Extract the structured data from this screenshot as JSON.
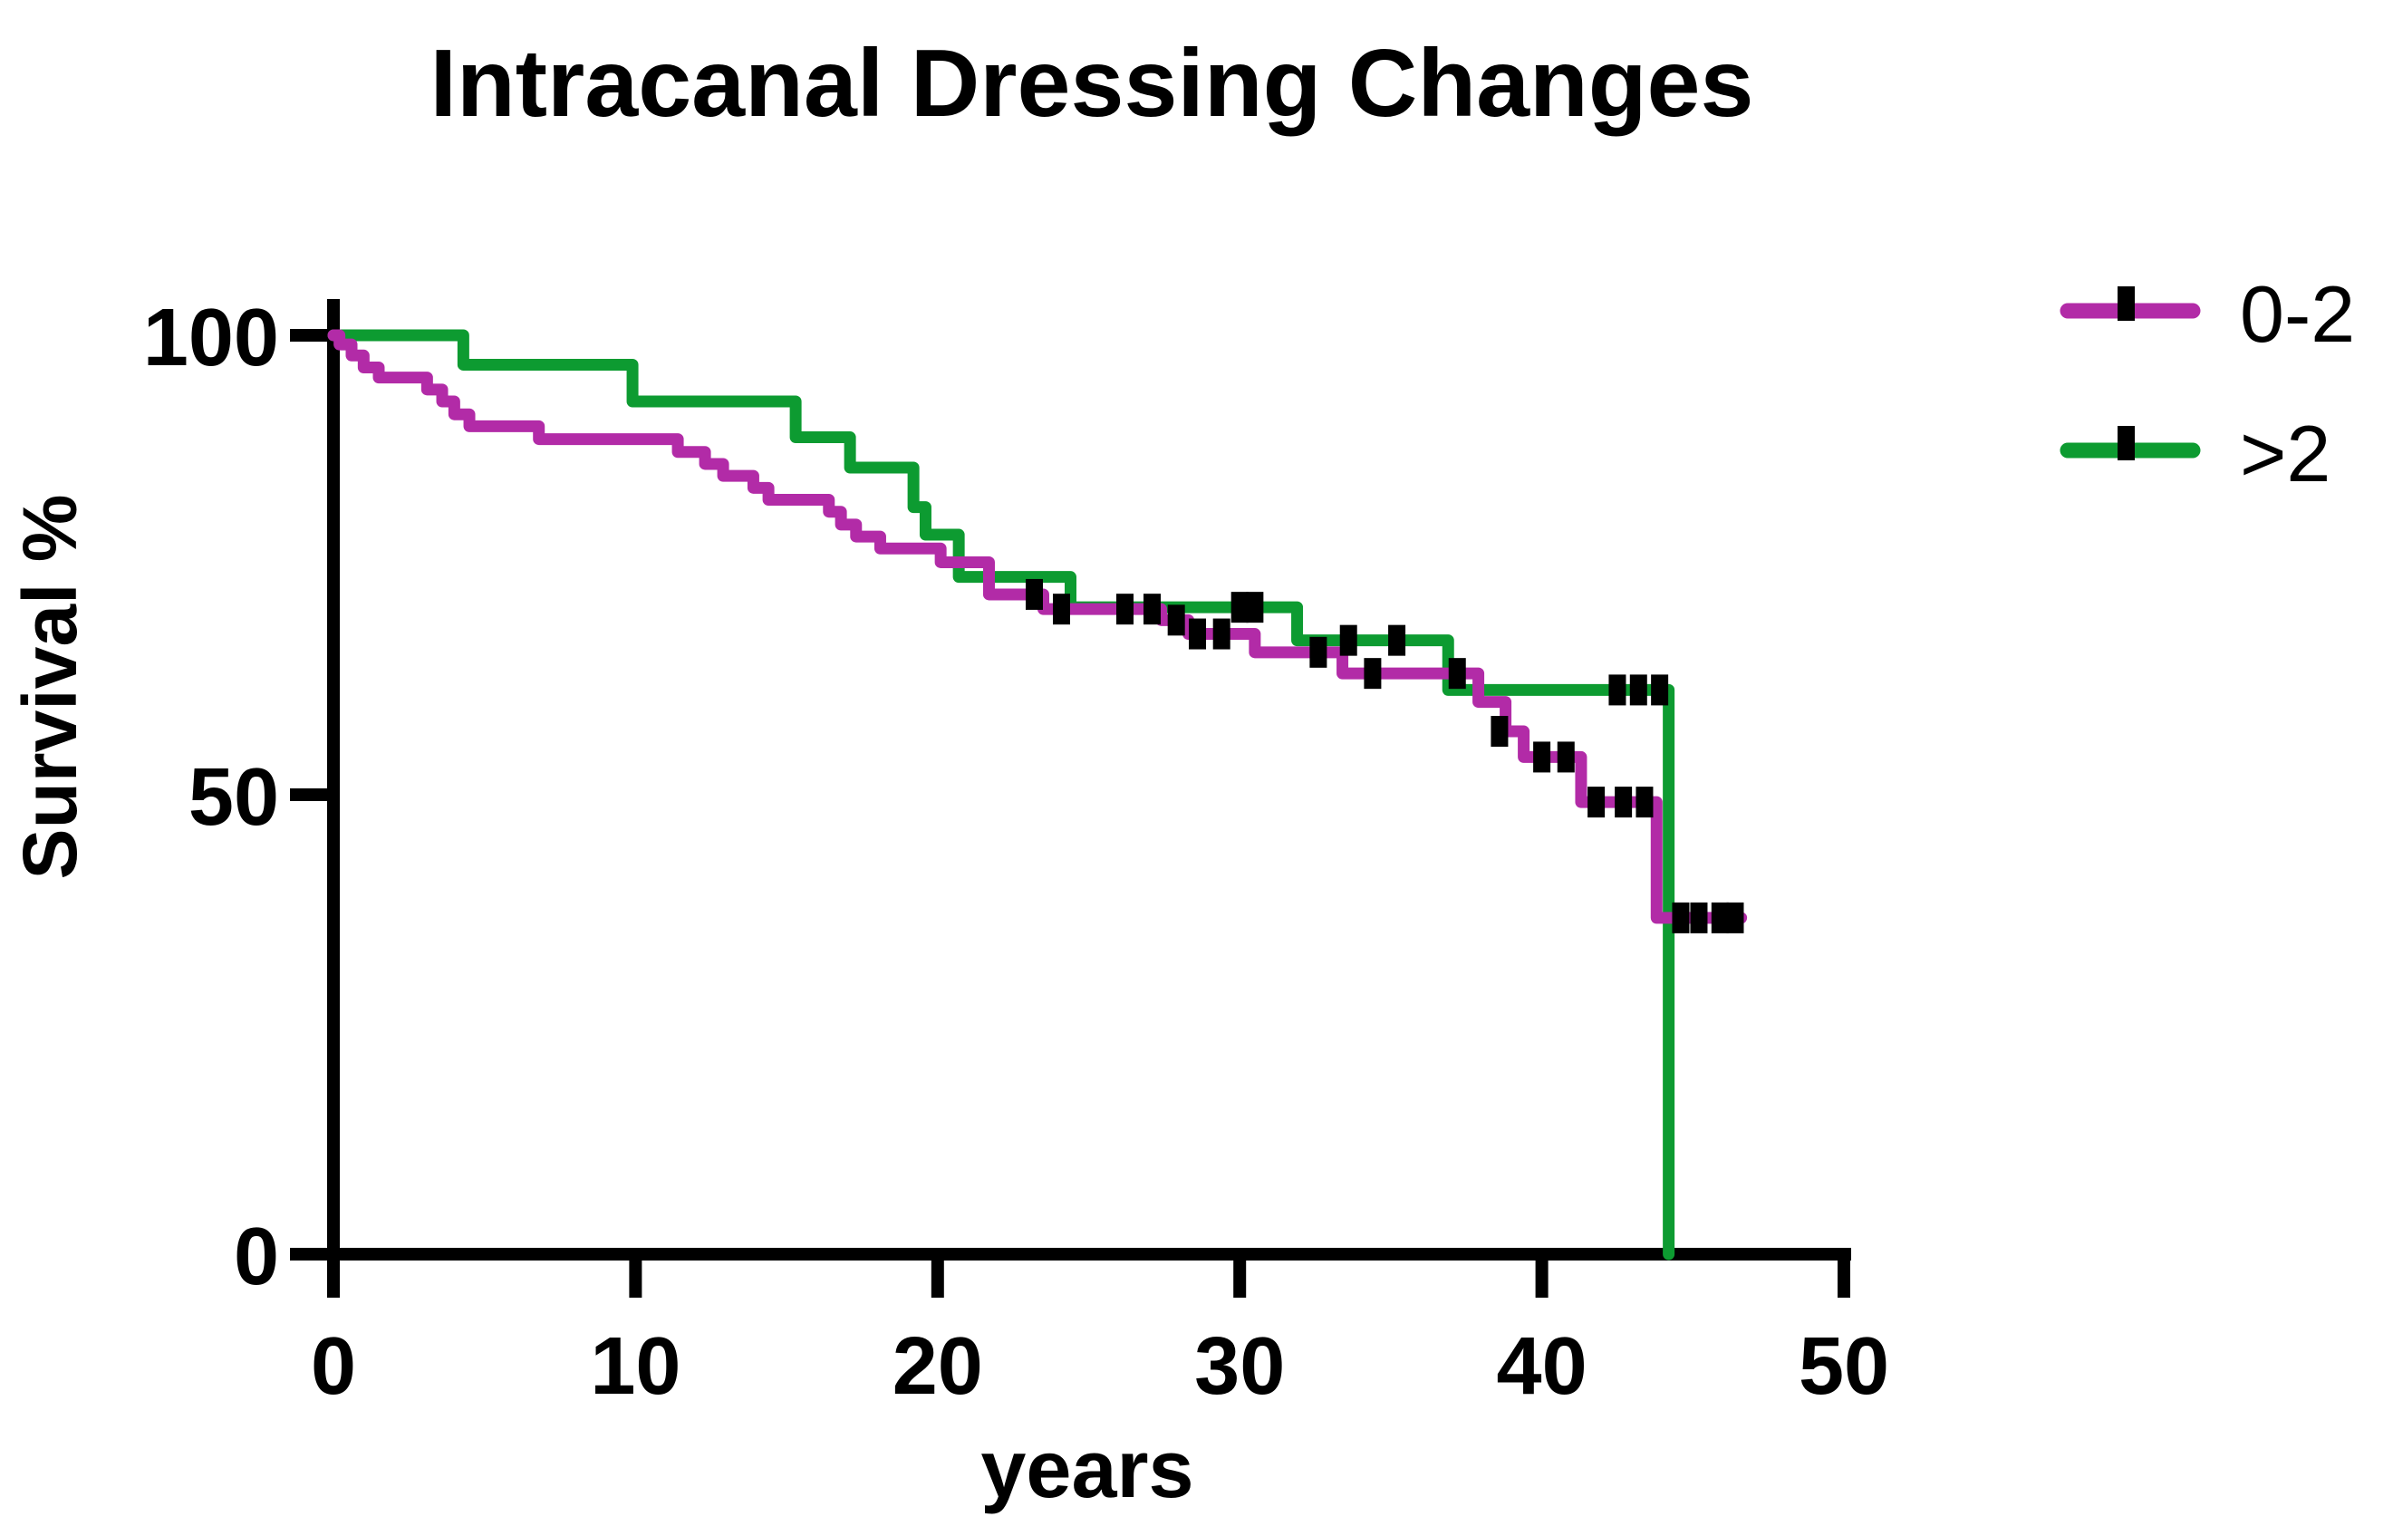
{
  "title": "Intracanal Dressing Changes",
  "legend": {
    "items": [
      {
        "label": "0-2",
        "color": "#B22BA7"
      },
      {
        "label": ">2",
        "color": "#0D9B31"
      }
    ]
  },
  "chart_data": {
    "type": "line",
    "subtype": "kaplan-meier-step-survival",
    "title": "Intracanal Dressing Changes",
    "xlabel": "years",
    "ylabel": "Survival %",
    "xlim": [
      0,
      50
    ],
    "ylim": [
      0,
      100
    ],
    "x_ticks": [
      0,
      10,
      20,
      30,
      40,
      50
    ],
    "x_tick_labels": [
      "0",
      "10",
      "20",
      "30",
      "40",
      "50"
    ],
    "y_ticks": [
      100,
      50,
      0
    ],
    "y_tick_labels": [
      "100",
      "50",
      "0"
    ],
    "grid": false,
    "legend_position": "right-top",
    "axis_color": "#000000",
    "censor_mark_color": "#000000",
    "series": [
      {
        "name": "0-2",
        "color": "#B22BA7",
        "end_x": 46.6,
        "steps": [
          [
            0,
            100
          ],
          [
            0.2,
            99.0
          ],
          [
            0.6,
            97.8
          ],
          [
            1.0,
            96.5
          ],
          [
            1.5,
            95.4
          ],
          [
            3.1,
            94.1
          ],
          [
            3.6,
            92.8
          ],
          [
            4.0,
            91.4
          ],
          [
            4.5,
            90.1
          ],
          [
            6.8,
            88.7
          ],
          [
            11.4,
            87.3
          ],
          [
            12.3,
            86.0
          ],
          [
            12.9,
            84.7
          ],
          [
            13.9,
            83.4
          ],
          [
            14.4,
            82.1
          ],
          [
            16.4,
            80.8
          ],
          [
            16.8,
            79.4
          ],
          [
            17.3,
            78.1
          ],
          [
            18.1,
            76.8
          ],
          [
            20.1,
            75.3
          ],
          [
            21.7,
            71.8
          ],
          [
            23.5,
            70.2
          ],
          [
            27.4,
            69.0
          ],
          [
            28.3,
            67.5
          ],
          [
            30.5,
            65.5
          ],
          [
            33.4,
            63.2
          ],
          [
            37.9,
            60.1
          ],
          [
            38.8,
            56.9
          ],
          [
            39.4,
            54.1
          ],
          [
            41.3,
            49.2
          ],
          [
            43.8,
            36.6
          ]
        ],
        "censors": [
          [
            23.2,
            71.8
          ],
          [
            24.1,
            70.2
          ],
          [
            26.2,
            70.2
          ],
          [
            27.1,
            70.2
          ],
          [
            27.9,
            69.0
          ],
          [
            28.6,
            67.5
          ],
          [
            29.4,
            67.5
          ],
          [
            32.6,
            65.5
          ],
          [
            34.4,
            63.2
          ],
          [
            37.2,
            63.2
          ],
          [
            38.6,
            56.9
          ],
          [
            40.0,
            54.1
          ],
          [
            40.8,
            54.1
          ],
          [
            41.8,
            49.2
          ],
          [
            42.7,
            49.2
          ],
          [
            43.4,
            49.2
          ],
          [
            44.6,
            36.6
          ],
          [
            45.2,
            36.6
          ],
          [
            45.9,
            36.6
          ],
          [
            46.4,
            36.6
          ]
        ]
      },
      {
        "name": ">2",
        "color": "#0D9B31",
        "end_x": 44.2,
        "steps": [
          [
            0,
            100
          ],
          [
            4.3,
            96.8
          ],
          [
            9.9,
            92.8
          ],
          [
            15.3,
            88.9
          ],
          [
            17.1,
            85.6
          ],
          [
            19.2,
            81.3
          ],
          [
            19.6,
            78.3
          ],
          [
            20.7,
            73.7
          ],
          [
            24.4,
            70.4
          ],
          [
            31.9,
            66.8
          ],
          [
            36.9,
            61.4
          ],
          [
            44.2,
            0
          ]
        ],
        "censors": [
          [
            30.0,
            70.4
          ],
          [
            30.5,
            70.4
          ],
          [
            33.6,
            66.8
          ],
          [
            35.2,
            66.8
          ],
          [
            42.5,
            61.4
          ],
          [
            43.2,
            61.4
          ],
          [
            43.9,
            61.4
          ]
        ]
      }
    ]
  }
}
